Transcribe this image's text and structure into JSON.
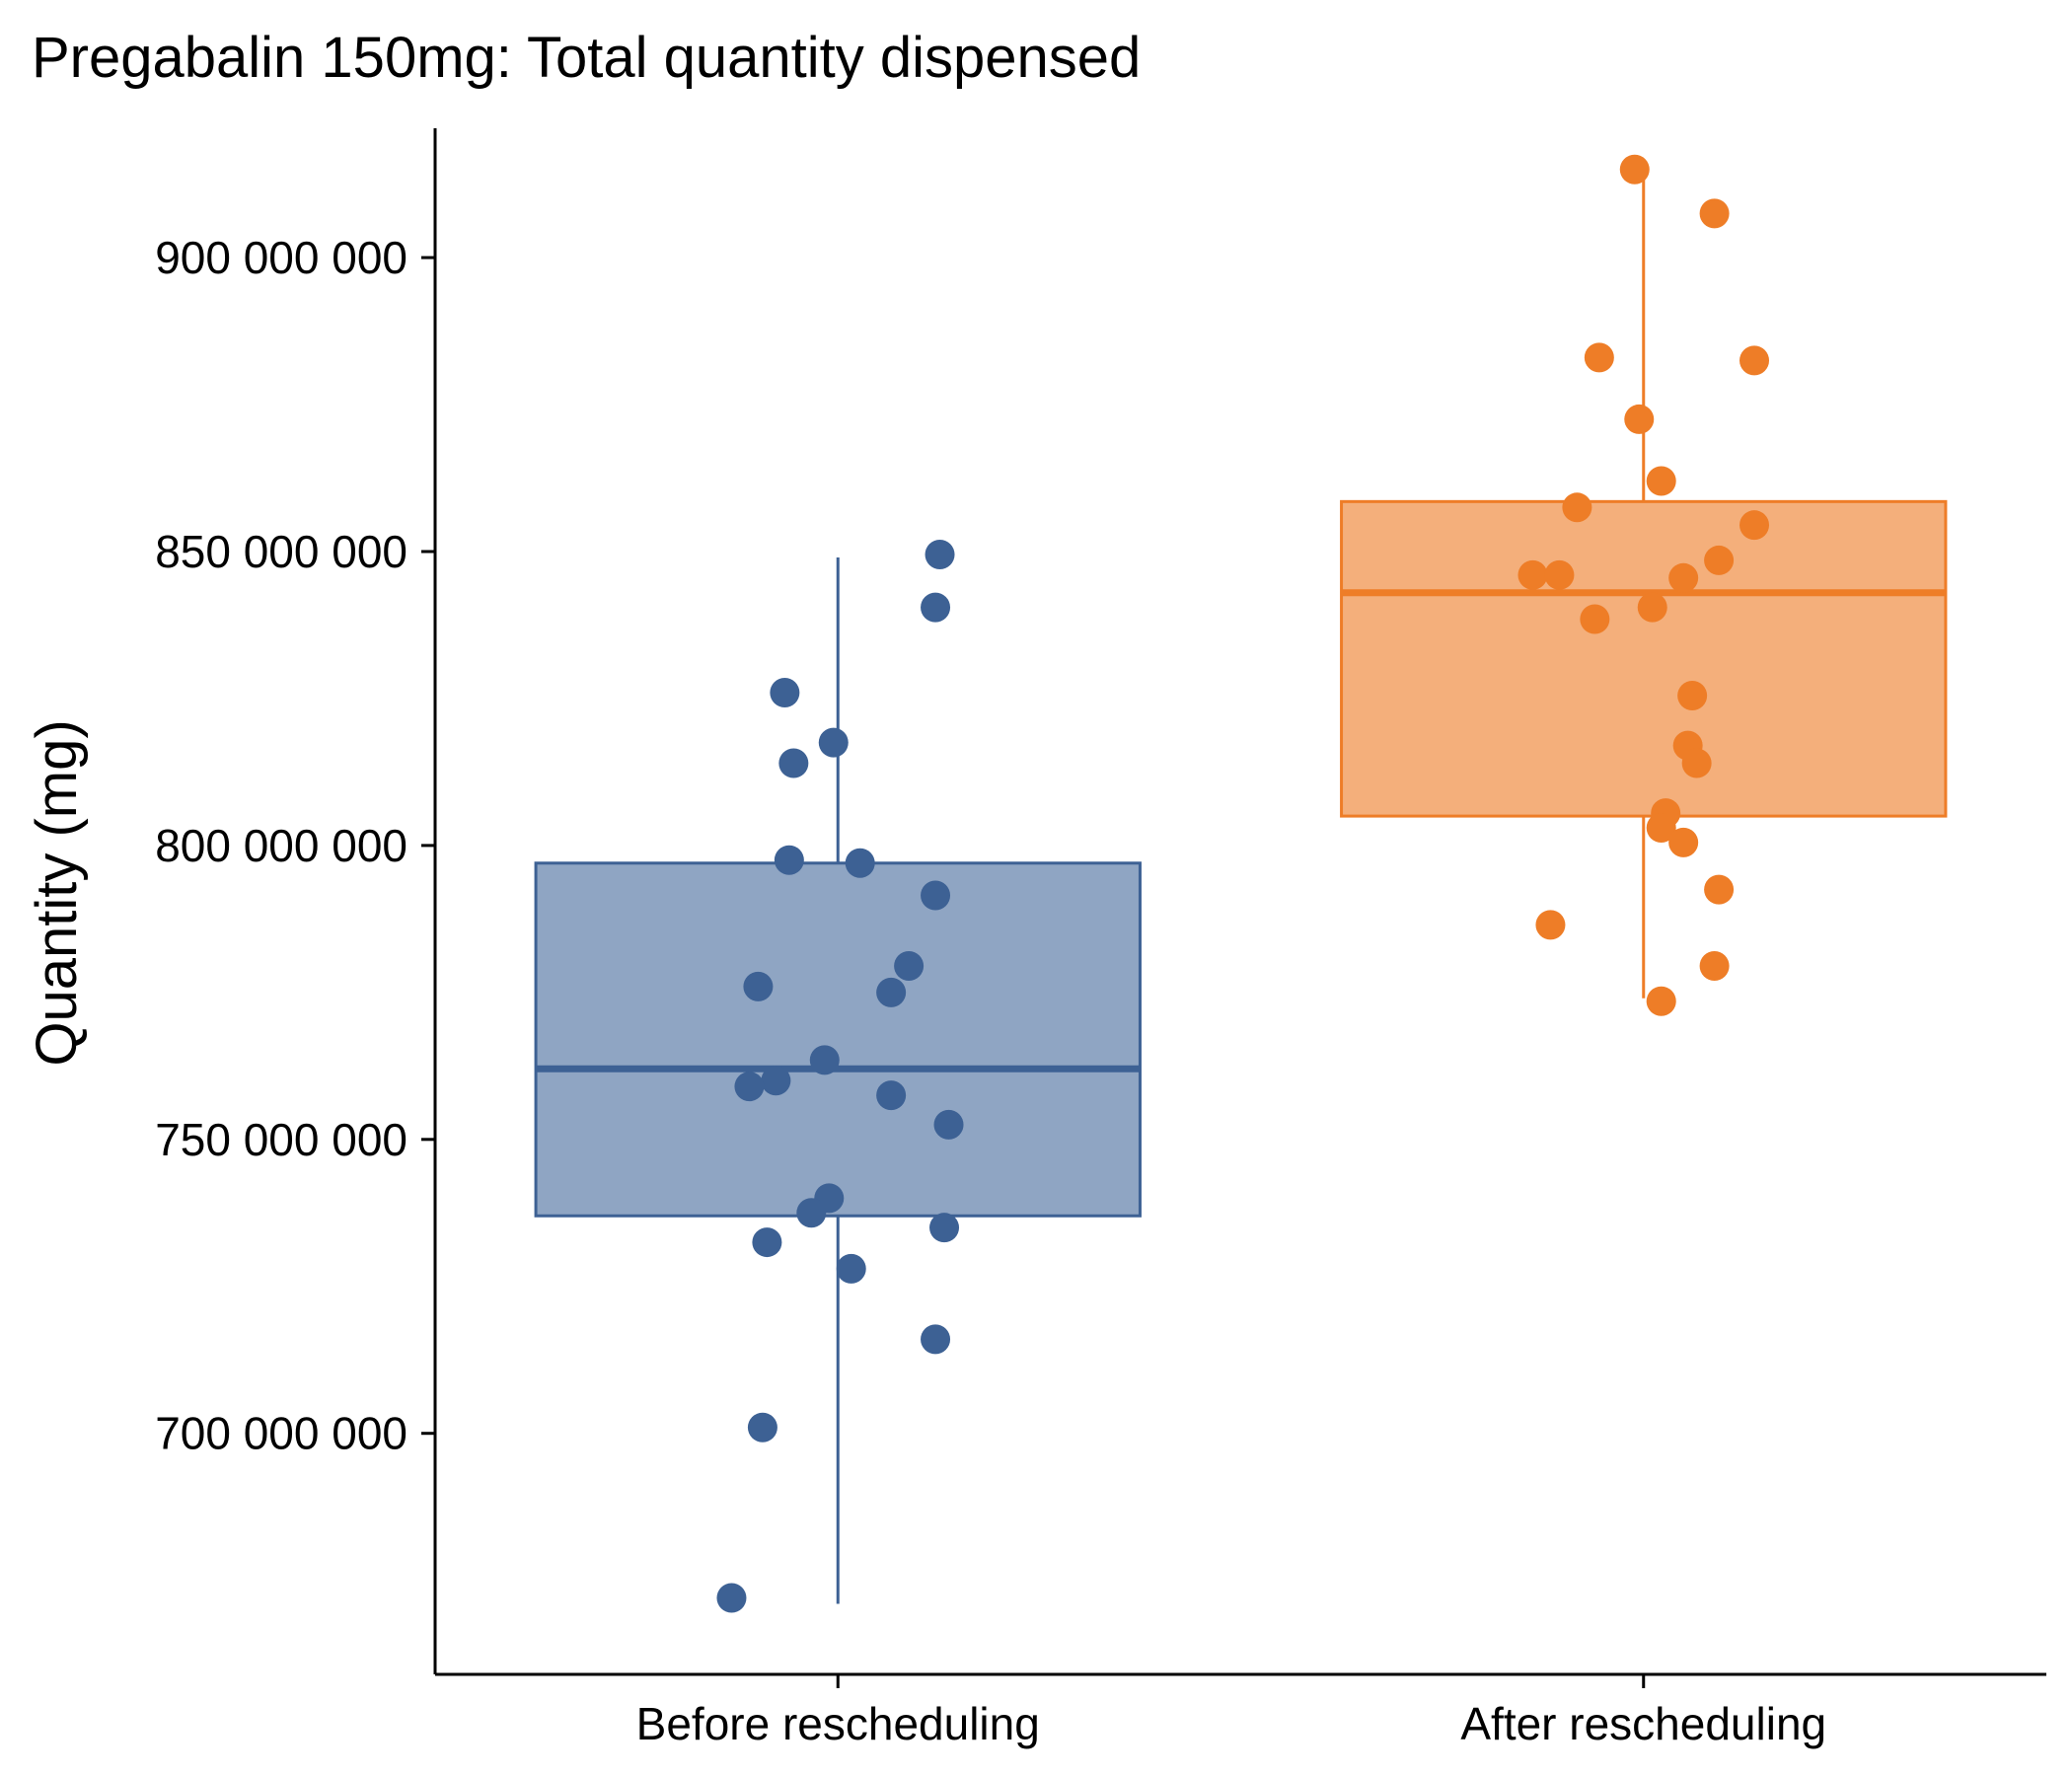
{
  "chart_data": {
    "type": "box",
    "title": "Pregabalin 150mg: Total quantity dispensed",
    "xlabel": "",
    "ylabel": "Quantity (mg)",
    "ylim": [
      659000000,
      922000000
    ],
    "y_ticks": [
      700000000,
      750000000,
      800000000,
      850000000,
      900000000
    ],
    "y_tick_labels": [
      "700 000 000",
      "750 000 000",
      "800 000 000",
      "850 000 000",
      "900 000 000"
    ],
    "categories": [
      "Before rescheduling",
      "After rescheduling"
    ],
    "grid": false,
    "legend": "none",
    "groups": [
      {
        "category": "Before rescheduling",
        "color": "#3d6194",
        "fill": "#8fa5c3",
        "box": {
          "whisker_low": 671000000,
          "q1": 737000000,
          "median": 762000000,
          "q3": 797000000,
          "whisker_high": 849000000
        },
        "points": [
          {
            "jitter": -0.23,
            "y": 849500000
          },
          {
            "jitter": -0.22,
            "y": 840500000
          },
          {
            "jitter": 0.12,
            "y": 826000000
          },
          {
            "jitter": 0.01,
            "y": 817500000
          },
          {
            "jitter": 0.1,
            "y": 814000000
          },
          {
            "jitter": 0.11,
            "y": 797500000
          },
          {
            "jitter": -0.05,
            "y": 797000000
          },
          {
            "jitter": -0.22,
            "y": 791500000
          },
          {
            "jitter": -0.16,
            "y": 779500000
          },
          {
            "jitter": 0.18,
            "y": 776000000
          },
          {
            "jitter": -0.12,
            "y": 775000000
          },
          {
            "jitter": 0.03,
            "y": 763500000
          },
          {
            "jitter": 0.14,
            "y": 760000000
          },
          {
            "jitter": 0.2,
            "y": 759000000
          },
          {
            "jitter": -0.12,
            "y": 757500000
          },
          {
            "jitter": -0.25,
            "y": 752500000
          },
          {
            "jitter": 0.02,
            "y": 740000000
          },
          {
            "jitter": 0.06,
            "y": 737500000
          },
          {
            "jitter": -0.24,
            "y": 735000000
          },
          {
            "jitter": 0.16,
            "y": 732500000
          },
          {
            "jitter": -0.03,
            "y": 728000000
          },
          {
            "jitter": -0.22,
            "y": 716000000
          },
          {
            "jitter": 0.17,
            "y": 701000000
          },
          {
            "jitter": 0.24,
            "y": 672000000
          }
        ]
      },
      {
        "category": "After rescheduling",
        "color": "#ee7d27",
        "fill": "#f4af7b",
        "box": {
          "whisker_low": 774000000,
          "q1": 805000000,
          "median": 843000000,
          "q3": 858500000,
          "whisker_high": 915000000
        },
        "points": [
          {
            "jitter": 0.02,
            "y": 915000000
          },
          {
            "jitter": -0.16,
            "y": 907500000
          },
          {
            "jitter": 0.1,
            "y": 883000000
          },
          {
            "jitter": -0.25,
            "y": 882500000
          },
          {
            "jitter": 0.01,
            "y": 872500000
          },
          {
            "jitter": -0.04,
            "y": 862000000
          },
          {
            "jitter": 0.15,
            "y": 857500000
          },
          {
            "jitter": -0.25,
            "y": 854500000
          },
          {
            "jitter": -0.17,
            "y": 848500000
          },
          {
            "jitter": 0.25,
            "y": 846000000
          },
          {
            "jitter": 0.19,
            "y": 846000000
          },
          {
            "jitter": -0.09,
            "y": 845500000
          },
          {
            "jitter": -0.02,
            "y": 840500000
          },
          {
            "jitter": 0.11,
            "y": 838500000
          },
          {
            "jitter": -0.11,
            "y": 825500000
          },
          {
            "jitter": -0.1,
            "y": 817000000
          },
          {
            "jitter": -0.12,
            "y": 814000000
          },
          {
            "jitter": -0.05,
            "y": 805500000
          },
          {
            "jitter": -0.04,
            "y": 803000000
          },
          {
            "jitter": -0.09,
            "y": 800500000
          },
          {
            "jitter": -0.17,
            "y": 792500000
          },
          {
            "jitter": 0.21,
            "y": 786500000
          },
          {
            "jitter": -0.16,
            "y": 779500000
          },
          {
            "jitter": -0.04,
            "y": 773500000
          }
        ]
      }
    ]
  }
}
